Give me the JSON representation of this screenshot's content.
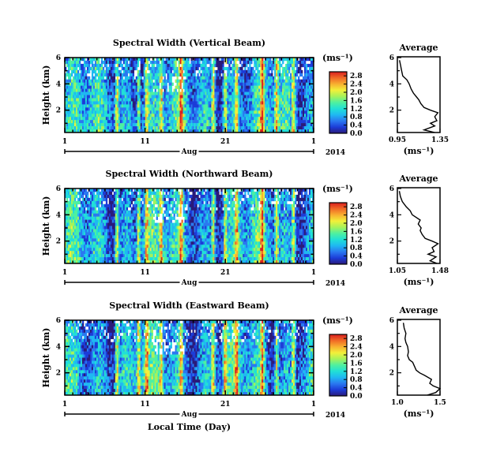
{
  "chart_data": [
    {
      "type": "heatmap",
      "title": "Spectral Width (Vertical Beam)",
      "ylabel": "Height (km)",
      "xlabel": "",
      "x_ticks": [
        "1",
        "11",
        "21",
        "1"
      ],
      "y_ticks": [
        "2",
        "4",
        "6"
      ],
      "xlim_day": [
        1,
        32
      ],
      "ylim": [
        0.3,
        6.0
      ],
      "month_label": "Aug",
      "year_label": "2014",
      "colorbar": {
        "unit": "(ms⁻¹)",
        "ticks": [
          "0.0",
          "0.4",
          "0.8",
          "1.2",
          "1.6",
          "2.0",
          "2.4",
          "2.8"
        ],
        "range": [
          0.0,
          3.0
        ]
      },
      "average": {
        "title": "Average",
        "xlabel": "(ms⁻¹)",
        "x_ticks": [
          "0.95",
          "1.35"
        ],
        "xlim": [
          0.95,
          1.35
        ],
        "y_ticks": [
          "2",
          "4",
          "6"
        ],
        "height": [
          0.3,
          0.5,
          0.8,
          1.0,
          1.2,
          1.5,
          1.8,
          2.0,
          2.2,
          2.5,
          2.8,
          3.0,
          3.3,
          3.6,
          4.0,
          4.3,
          4.6,
          5.0,
          5.4,
          5.8
        ],
        "value": [
          1.3,
          1.2,
          1.3,
          1.26,
          1.32,
          1.3,
          1.33,
          1.26,
          1.2,
          1.17,
          1.15,
          1.13,
          1.1,
          1.08,
          1.06,
          1.04,
          1.0,
          0.99,
          0.98,
          0.97
        ]
      }
    },
    {
      "type": "heatmap",
      "title": "Spectral Width (Northward Beam)",
      "ylabel": "Height (km)",
      "xlabel": "",
      "x_ticks": [
        "1",
        "11",
        "21",
        "1"
      ],
      "y_ticks": [
        "2",
        "4",
        "6"
      ],
      "xlim_day": [
        1,
        32
      ],
      "ylim": [
        0.3,
        6.0
      ],
      "month_label": "Aug",
      "year_label": "2014",
      "colorbar": {
        "unit": "(ms⁻¹)",
        "ticks": [
          "0.0",
          "0.4",
          "0.8",
          "1.2",
          "1.6",
          "2.0",
          "2.4",
          "2.8"
        ],
        "range": [
          0.0,
          3.0
        ]
      },
      "average": {
        "title": "Average",
        "xlabel": "(ms⁻¹)",
        "x_ticks": [
          "1.05",
          "1.48"
        ],
        "xlim": [
          1.05,
          1.48
        ],
        "y_ticks": [
          "2",
          "4",
          "6"
        ],
        "height": [
          0.3,
          0.5,
          0.8,
          1.0,
          1.2,
          1.5,
          1.8,
          2.0,
          2.2,
          2.5,
          2.8,
          3.0,
          3.3,
          3.6,
          4.0,
          4.3,
          4.6,
          5.0,
          5.4,
          5.8
        ],
        "value": [
          1.45,
          1.38,
          1.44,
          1.36,
          1.42,
          1.4,
          1.46,
          1.4,
          1.33,
          1.3,
          1.28,
          1.29,
          1.26,
          1.28,
          1.2,
          1.18,
          1.14,
          1.1,
          1.08,
          1.07
        ]
      }
    },
    {
      "type": "heatmap",
      "title": "Spectral Width (Eastward Beam)",
      "ylabel": "Height (km)",
      "xlabel": "Local Time (Day)",
      "x_ticks": [
        "1",
        "11",
        "21",
        "1"
      ],
      "y_ticks": [
        "2",
        "4",
        "6"
      ],
      "xlim_day": [
        1,
        32
      ],
      "ylim": [
        0.3,
        6.0
      ],
      "month_label": "Aug",
      "year_label": "2014",
      "colorbar": {
        "unit": "(ms⁻¹)",
        "ticks": [
          "0.0",
          "0.4",
          "0.8",
          "1.2",
          "1.6",
          "2.0",
          "2.4",
          "2.8"
        ],
        "range": [
          0.0,
          3.0
        ]
      },
      "average": {
        "title": "Average",
        "xlabel": "(ms⁻¹)",
        "x_ticks": [
          "1.0",
          "1.5"
        ],
        "xlim": [
          1.0,
          1.5
        ],
        "y_ticks": [
          "2",
          "4",
          "6"
        ],
        "height": [
          0.3,
          0.5,
          0.8,
          1.0,
          1.2,
          1.5,
          1.8,
          2.0,
          2.2,
          2.5,
          2.8,
          3.0,
          3.3,
          3.6,
          4.0,
          4.3,
          4.6,
          5.0,
          5.4,
          5.8
        ],
        "value": [
          1.35,
          1.45,
          1.5,
          1.42,
          1.38,
          1.4,
          1.32,
          1.26,
          1.22,
          1.2,
          1.18,
          1.14,
          1.12,
          1.13,
          1.12,
          1.1,
          1.09,
          1.1,
          1.08,
          1.07
        ]
      }
    }
  ],
  "colors": {
    "colormap": [
      "#2a1a7a",
      "#1c3cd8",
      "#2a78f0",
      "#1fb8f2",
      "#21e0d6",
      "#4ef0a0",
      "#a6f25a",
      "#f2f03a",
      "#f8b030",
      "#f06a26",
      "#d91e1e"
    ]
  }
}
